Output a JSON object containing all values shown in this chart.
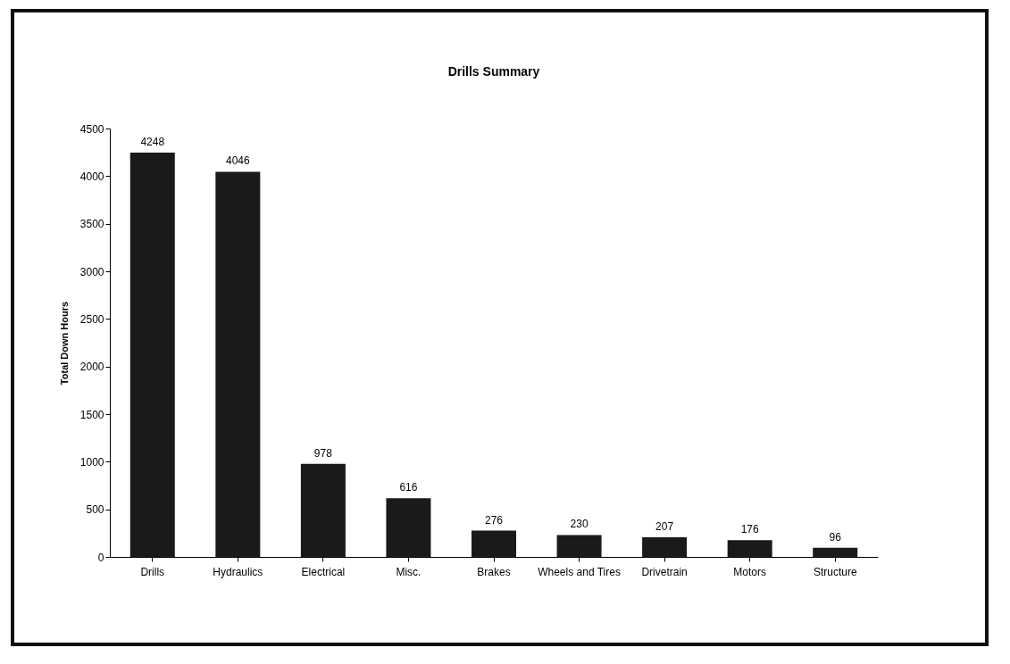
{
  "chart_data": {
    "type": "bar",
    "title": "Drills Summary",
    "ylabel": "Total Down Hours",
    "categories": [
      "Drills",
      "Hydraulics",
      "Electrical",
      "Misc.",
      "Brakes",
      "Wheels and Tires",
      "Drivetrain",
      "Motors",
      "Structure"
    ],
    "values": [
      4248,
      4046,
      978,
      616,
      276,
      230,
      207,
      176,
      96
    ],
    "color": "#1a1a1a",
    "ylim": [
      0,
      4500
    ],
    "yticks": [
      0,
      500,
      1000,
      1500,
      2000,
      2500,
      3000,
      3500,
      4000,
      4500
    ],
    "data_labels": true,
    "grid": false
  }
}
